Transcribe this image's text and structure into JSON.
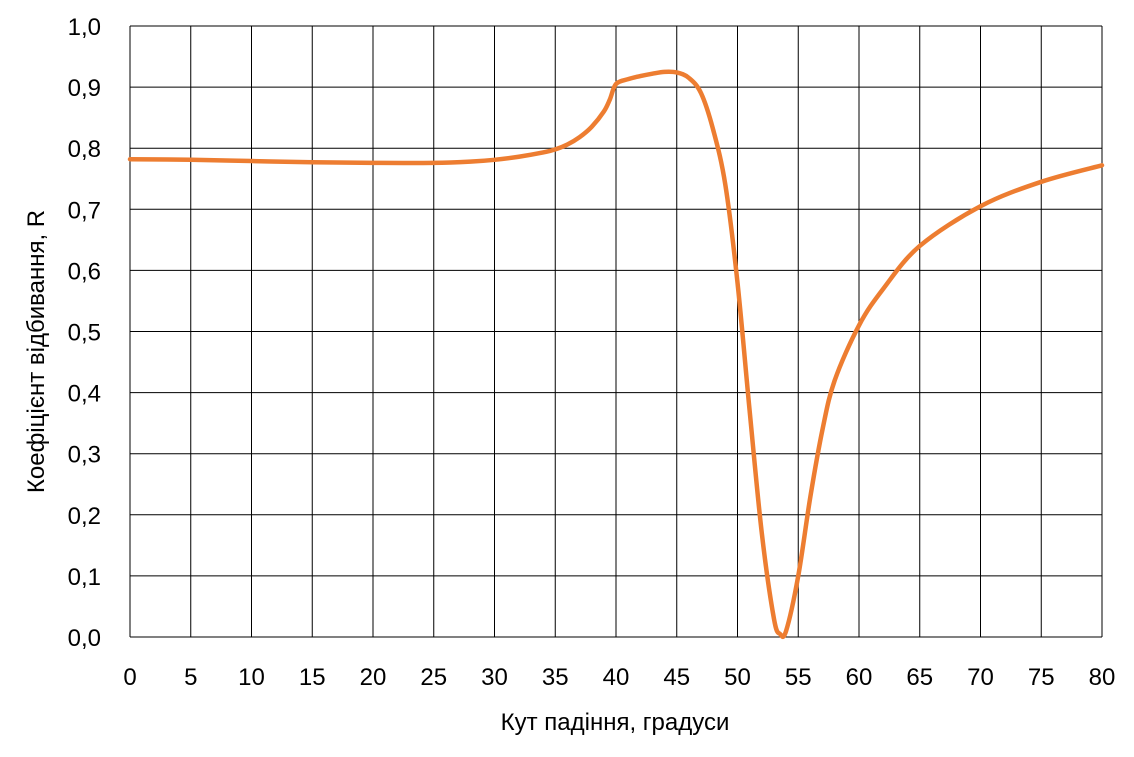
{
  "chart_data": {
    "type": "line",
    "title": "",
    "xlabel": "Кут падіння, градуси",
    "ylabel": "Коефіцієнт відбивання, R",
    "xlim": [
      0,
      80
    ],
    "ylim": [
      0,
      1
    ],
    "x_ticks": [
      0,
      5,
      10,
      15,
      20,
      25,
      30,
      35,
      40,
      45,
      50,
      55,
      60,
      65,
      70,
      75,
      80
    ],
    "x_tick_labels": [
      "0",
      "5",
      "10",
      "15",
      "20",
      "25",
      "30",
      "35",
      "40",
      "45",
      "50",
      "55",
      "60",
      "65",
      "70",
      "75",
      "80"
    ],
    "y_ticks": [
      0,
      0.1,
      0.2,
      0.3,
      0.4,
      0.5,
      0.6,
      0.7,
      0.8,
      0.9,
      1.0
    ],
    "y_tick_labels": [
      "0,0",
      "0,1",
      "0,2",
      "0,3",
      "0,4",
      "0,5",
      "0,6",
      "0,7",
      "0,8",
      "0,9",
      "1,0"
    ],
    "grid": true,
    "legend": "none",
    "series": [
      {
        "color": "#ED7D31",
        "x": [
          0,
          5,
          10,
          15,
          20,
          25,
          28,
          30,
          32,
          34,
          35,
          36,
          37,
          38,
          39,
          39.5,
          40,
          41,
          42,
          43,
          44,
          45,
          46,
          47,
          48,
          49,
          50,
          51,
          52,
          53,
          53.5,
          54,
          55,
          56,
          57,
          58,
          60,
          62,
          65,
          70,
          75,
          80
        ],
        "y": [
          0.782,
          0.781,
          0.779,
          0.777,
          0.776,
          0.776,
          0.778,
          0.781,
          0.786,
          0.793,
          0.798,
          0.806,
          0.818,
          0.835,
          0.86,
          0.88,
          0.905,
          0.913,
          0.918,
          0.922,
          0.925,
          0.924,
          0.915,
          0.89,
          0.83,
          0.74,
          0.58,
          0.37,
          0.17,
          0.03,
          0.005,
          0.01,
          0.1,
          0.23,
          0.34,
          0.42,
          0.51,
          0.57,
          0.64,
          0.705,
          0.745,
          0.772
        ]
      }
    ]
  }
}
